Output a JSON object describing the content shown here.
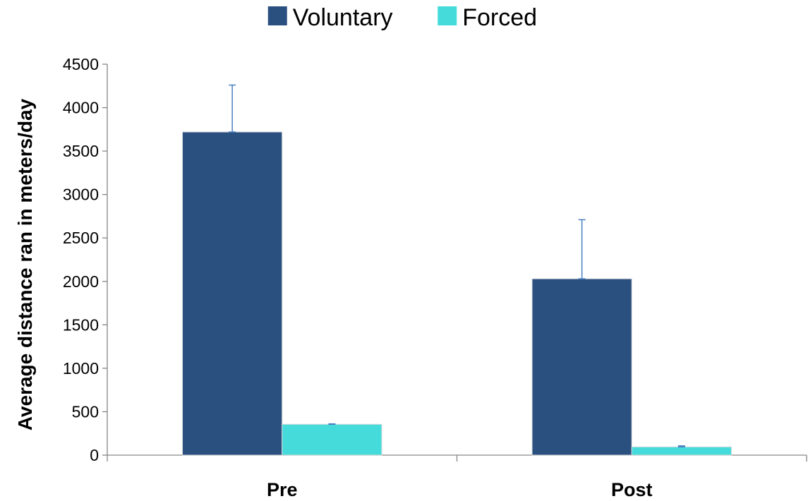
{
  "chart_data": {
    "type": "bar",
    "title": "",
    "xlabel": "",
    "ylabel": "Average distance ran in meters/day",
    "categories": [
      "Pre",
      "Post"
    ],
    "series": [
      {
        "name": "Voluntary",
        "color": "#2a5080",
        "values": [
          3720,
          2030
        ],
        "error": [
          540,
          680
        ]
      },
      {
        "name": "Forced",
        "color": "#45dbdb",
        "values": [
          355,
          95
        ],
        "error": [
          5,
          12
        ]
      }
    ],
    "ylim": [
      0,
      4500
    ],
    "yticks": [
      0,
      500,
      1000,
      1500,
      2000,
      2500,
      3000,
      3500,
      4000,
      4500
    ],
    "legend_position": "top-center",
    "grid": false,
    "error_bar_color": "#4a7fc0"
  }
}
